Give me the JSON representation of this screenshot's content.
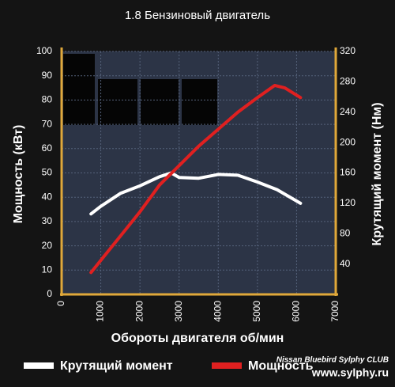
{
  "chart_data": {
    "type": "line",
    "title": "1.8 Бензиновый двигатель",
    "x_label": "Обороты двигателя об/мин",
    "y_label": "Мощность (кВт)",
    "y2_label": "Крутящий момент (Нм)",
    "xlim": [
      0,
      7000
    ],
    "xticks": [
      0,
      1000,
      2000,
      3000,
      4000,
      5000,
      6000,
      7000
    ],
    "ylim": [
      0,
      100
    ],
    "yticks": [
      0,
      10,
      20,
      30,
      40,
      50,
      60,
      70,
      80,
      90,
      100
    ],
    "y2lim": [
      0,
      320
    ],
    "y2ticks": [
      40,
      80,
      120,
      160,
      200,
      240,
      280,
      320
    ],
    "grid": true,
    "series": [
      {
        "name": "Крутящий момент",
        "color": "#ffffff",
        "axis": "y2",
        "x": [
          750,
          1000,
          1500,
          2000,
          2500,
          2800,
          3000,
          3500,
          4000,
          4500,
          5000,
          5500,
          6100
        ],
        "values": [
          106,
          116,
          133,
          143,
          155,
          160,
          154,
          153,
          158,
          157,
          148,
          138,
          120
        ]
      },
      {
        "name": "Мощность",
        "color": "#e02020",
        "x": [
          750,
          1000,
          1500,
          2000,
          2500,
          3000,
          3500,
          4000,
          4500,
          5000,
          5440,
          5700,
          6100
        ],
        "values": [
          9,
          14,
          24,
          34,
          45,
          53,
          61,
          68,
          75,
          81,
          86,
          85,
          81
        ]
      }
    ],
    "watermark": [
      "Nissan Bluebird Sylphy CLUB",
      "www.sylphy.ru"
    ]
  }
}
